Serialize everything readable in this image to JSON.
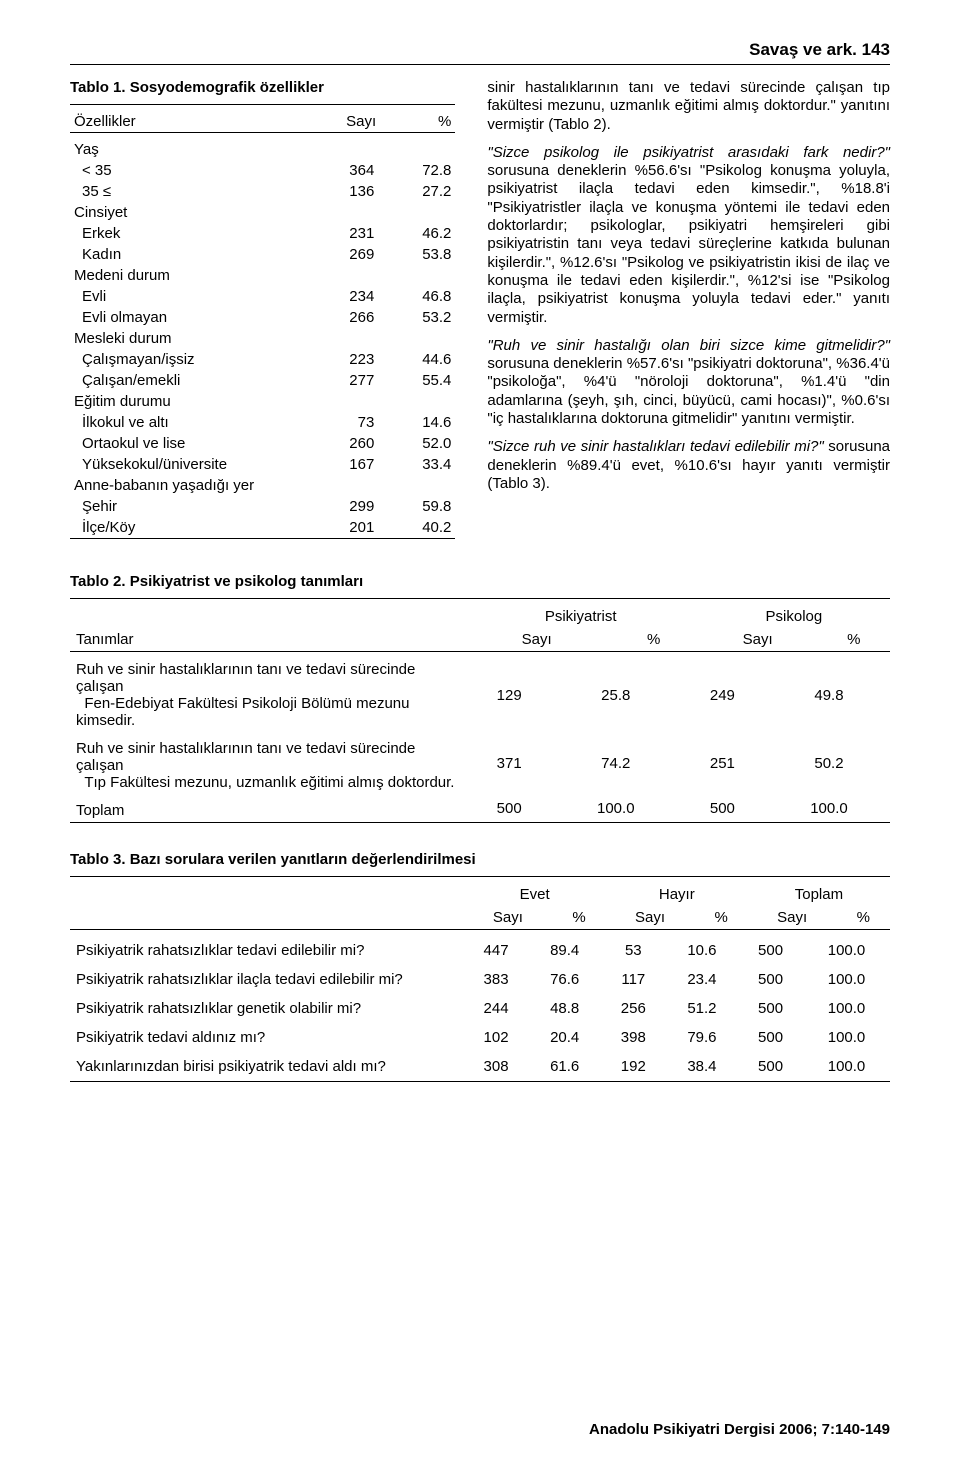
{
  "page": {
    "running_head": "Savaş ve ark.    143",
    "footer": "Anadolu Psikiyatri Dergisi 2006; 7:140-149"
  },
  "table1": {
    "title": "Tablo 1. Sosyodemografik özellikler",
    "header": {
      "c0": "Özellikler",
      "c1": "Sayı",
      "c2": "%"
    },
    "groups": [
      {
        "label": "Yaş",
        "rows": [
          {
            "name": "< 35",
            "n": "364",
            "pct": "72.8"
          },
          {
            "name": "35 ≤",
            "n": "136",
            "pct": "27.2"
          }
        ]
      },
      {
        "label": "Cinsiyet",
        "rows": [
          {
            "name": "Erkek",
            "n": "231",
            "pct": "46.2"
          },
          {
            "name": "Kadın",
            "n": "269",
            "pct": "53.8"
          }
        ]
      },
      {
        "label": "Medeni durum",
        "rows": [
          {
            "name": "Evli",
            "n": "234",
            "pct": "46.8"
          },
          {
            "name": "Evli olmayan",
            "n": "266",
            "pct": "53.2"
          }
        ]
      },
      {
        "label": "Mesleki durum",
        "rows": [
          {
            "name": "Çalışmayan/işsiz",
            "n": "223",
            "pct": "44.6"
          },
          {
            "name": "Çalışan/emekli",
            "n": "277",
            "pct": "55.4"
          }
        ]
      },
      {
        "label": "Eğitim durumu",
        "rows": [
          {
            "name": "İlkokul ve altı",
            "n": "73",
            "pct": "14.6"
          },
          {
            "name": "Ortaokul ve lise",
            "n": "260",
            "pct": "52.0"
          },
          {
            "name": "Yüksekokul/üniversite",
            "n": "167",
            "pct": "33.4"
          }
        ]
      },
      {
        "label": "Anne-babanın yaşadığı yer",
        "rows": [
          {
            "name": "Şehir",
            "n": "299",
            "pct": "59.8"
          },
          {
            "name": "İlçe/Köy",
            "n": "201",
            "pct": "40.2"
          }
        ]
      }
    ]
  },
  "paragraphs": {
    "p1_pre": "sinir hastalıklarının tanı ve tedavi sürecinde çalışan tıp fakültesi mezunu, uzmanlık eğitimi almış doktordur.\" yanıtını vermiştir (Tablo 2).",
    "p2_q": "\"Sizce psikolog ile psikiyatrist arasıdaki fark nedir?\"",
    "p2_rest": " sorusuna deneklerin %56.6'sı \"Psikolog konuşma yoluyla, psikiyatrist ilaçla tedavi eden kimsedir.\", %18.8'i \"Psikiyatristler ilaçla ve konuşma yöntemi ile tedavi eden doktorlardır; psikologlar, psikiyatri hemşireleri gibi psikiyatristin tanı veya tedavi süreçlerine katkıda bulunan kişilerdir.\", %12.6'sı \"Psikolog ve psikiyatristin ikisi de ilaç ve konuşma ile tedavi eden kişilerdir.\", %12'si ise \"Psikolog ilaçla, psikiyatrist konuşma yoluyla tedavi eder.\" yanıtı vermiştir.",
    "p3_q": "\"Ruh ve sinir hastalığı olan biri sizce kime gitmelidir?\"",
    "p3_rest": " sorusuna deneklerin %57.6'sı \"psikiyatri doktoruna\", %36.4'ü \"psikoloğa\", %4'ü \"nöroloji doktoruna\", %1.4'ü \"din adamlarına (şeyh, şıh, cinci, büyücü, cami hocası)\", %0.6'sı \"iç hastalıklarına doktoruna gitmelidir\" yanıtını vermiştir.",
    "p4_q": "\"Sizce ruh ve sinir hastalıkları tedavi edilebilir mi?\"",
    "p4_rest": " sorusuna deneklerin %89.4'ü evet, %10.6'sı hayır yanıtı vermiştir (Tablo 3)."
  },
  "table2": {
    "title": "Tablo 2. Psikiyatrist ve psikolog tanımları",
    "head": {
      "col0": "Tanımlar",
      "group1": "Psikiyatrist",
      "group2": "Psikolog",
      "sub_n": "Sayı",
      "sub_p": "%"
    },
    "rows": [
      {
        "label_l1": "Ruh ve sinir hastalıklarının tanı ve tedavi sürecinde çalışan",
        "label_l2": "Fen-Edebiyat Fakültesi Psikoloji Bölümü mezunu kimsedir.",
        "a_n": "129",
        "a_p": "25.8",
        "b_n": "249",
        "b_p": "49.8"
      },
      {
        "label_l1": "Ruh ve sinir hastalıklarının tanı ve tedavi sürecinde çalışan",
        "label_l2": "Tıp Fakültesi mezunu, uzmanlık eğitimi almış doktordur.",
        "a_n": "371",
        "a_p": "74.2",
        "b_n": "251",
        "b_p": "50.2"
      },
      {
        "label_l1": "Toplam",
        "label_l2": "",
        "a_n": "500",
        "a_p": "100.0",
        "b_n": "500",
        "b_p": "100.0"
      }
    ]
  },
  "table3": {
    "title": "Tablo 3. Bazı sorulara verilen yanıtların değerlendirilmesi",
    "head": {
      "g1": "Evet",
      "g2": "Hayır",
      "g3": "Toplam",
      "sub_n": "Sayı",
      "sub_p": "%"
    },
    "rows": [
      {
        "q": "Psikiyatrik rahatsızlıklar tedavi edilebilir mi?",
        "e_n": "447",
        "e_p": "89.4",
        "h_n": "53",
        "h_p": "10.6",
        "t_n": "500",
        "t_p": "100.0"
      },
      {
        "q": "Psikiyatrik rahatsızlıklar ilaçla tedavi edilebilir mi?",
        "e_n": "383",
        "e_p": "76.6",
        "h_n": "117",
        "h_p": "23.4",
        "t_n": "500",
        "t_p": "100.0"
      },
      {
        "q": "Psikiyatrik rahatsızlıklar genetik olabilir mi?",
        "e_n": "244",
        "e_p": "48.8",
        "h_n": "256",
        "h_p": "51.2",
        "t_n": "500",
        "t_p": "100.0"
      },
      {
        "q": "Psikiyatrik tedavi aldınız mı?",
        "e_n": "102",
        "e_p": "20.4",
        "h_n": "398",
        "h_p": "79.6",
        "t_n": "500",
        "t_p": "100.0"
      },
      {
        "q": "Yakınlarınızdan birisi psikiyatrik tedavi aldı mı?",
        "e_n": "308",
        "e_p": "61.6",
        "h_n": "192",
        "h_p": "38.4",
        "t_n": "500",
        "t_p": "100.0"
      }
    ]
  }
}
